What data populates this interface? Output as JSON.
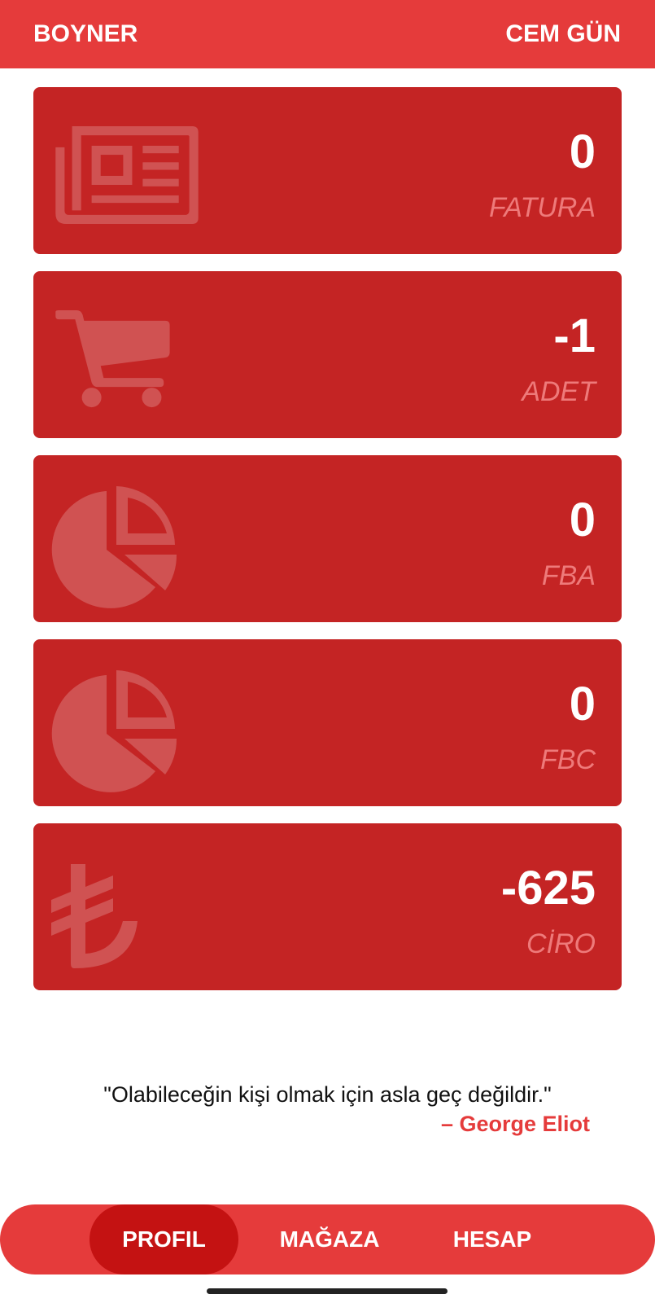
{
  "header": {
    "brand": "BOYNER",
    "user": "CEM GÜN"
  },
  "cards": [
    {
      "value": "0",
      "label": "FATURA",
      "icon": "newspaper-icon"
    },
    {
      "value": "-1",
      "label": "ADET",
      "icon": "cart-icon"
    },
    {
      "value": "0",
      "label": "FBA",
      "icon": "pie-chart-icon"
    },
    {
      "value": "0",
      "label": "FBC",
      "icon": "pie-chart-icon"
    },
    {
      "value": "-625",
      "label": "CİRO",
      "icon": "lira-icon"
    }
  ],
  "quote": {
    "text": "\"Olabileceğin kişi olmak için asla geç değildir.\"",
    "author": "– George Eliot"
  },
  "nav": {
    "items": [
      {
        "label": "PROFIL",
        "active": true
      },
      {
        "label": "MAĞAZA",
        "active": false
      },
      {
        "label": "HESAP",
        "active": false
      }
    ]
  },
  "colors": {
    "header": "#e53b3b",
    "card": "#c42424",
    "label": "#ee7a7a",
    "nav_active": "#c41212"
  }
}
